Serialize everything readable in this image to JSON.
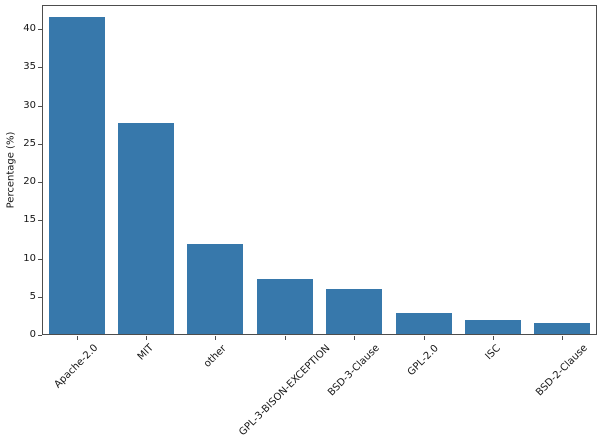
{
  "chart_data": {
    "type": "bar",
    "title": "",
    "xlabel": "",
    "ylabel": "Percentage (%)",
    "categories": [
      "Apache-2.0",
      "MIT",
      "other",
      "GPL-3-BISON-EXCEPTION",
      "BSD-3-Clause",
      "GPL-2.0",
      "ISC",
      "BSD-2-Clause"
    ],
    "values": [
      41.5,
      27.6,
      11.8,
      7.2,
      5.9,
      2.7,
      1.8,
      1.5
    ],
    "yticks": [
      0,
      5,
      10,
      15,
      20,
      25,
      30,
      35,
      40
    ],
    "ylim": [
      0,
      43.15
    ],
    "x_tick_rotation_deg": 45,
    "grid": false,
    "legend": "none",
    "bar_color": "#3778ab",
    "spine_color": "#4d4d4d",
    "text_color": "#161616",
    "background_color": "#ffffff"
  }
}
